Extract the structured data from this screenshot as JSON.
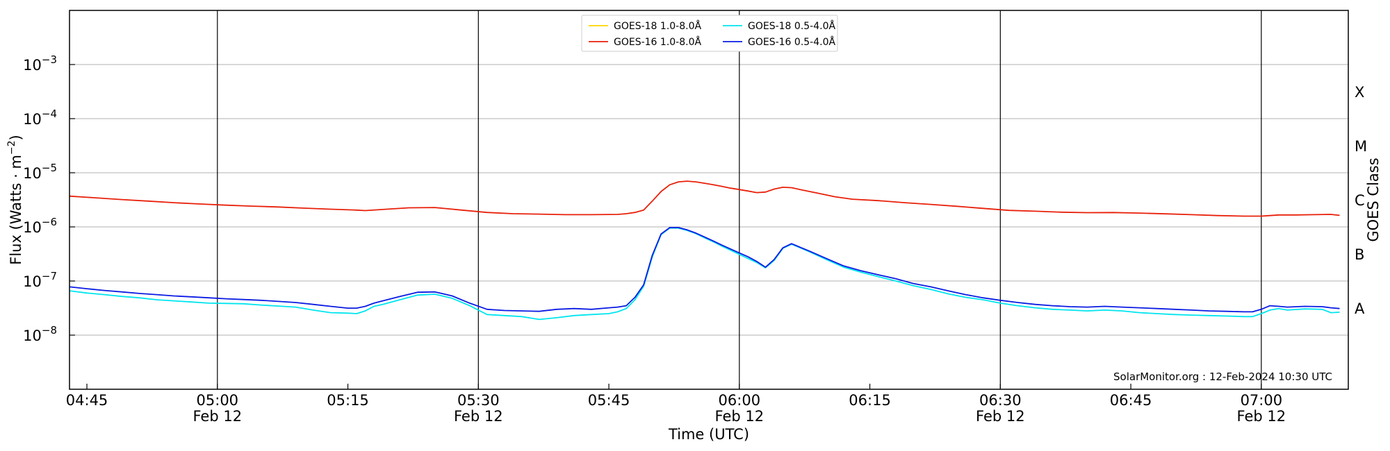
{
  "chart_data": {
    "type": "line",
    "title": "",
    "xlabel": "Time (UTC)",
    "ylabel_prefix": "Flux (Watts · m",
    "ylabel_sup": "−2",
    "ylabel_suffix": ")",
    "right_label": "GOES Class",
    "yscale": "log",
    "xlim_minutes_utc": [
      283,
      430
    ],
    "ylim": [
      1e-09,
      0.01
    ],
    "grid": "horizontal at decades",
    "legend_position": "top-center",
    "credit": "SolarMonitor.org : 12-Feb-2024 10:30 UTC",
    "x_ticks": [
      {
        "t": 285,
        "time": "04:45",
        "date": ""
      },
      {
        "t": 300,
        "time": "05:00",
        "date": "Feb 12"
      },
      {
        "t": 315,
        "time": "05:15",
        "date": ""
      },
      {
        "t": 330,
        "time": "05:30",
        "date": "Feb 12"
      },
      {
        "t": 345,
        "time": "05:45",
        "date": ""
      },
      {
        "t": 360,
        "time": "06:00",
        "date": "Feb 12"
      },
      {
        "t": 375,
        "time": "06:15",
        "date": ""
      },
      {
        "t": 390,
        "time": "06:30",
        "date": "Feb 12"
      },
      {
        "t": 405,
        "time": "06:45",
        "date": ""
      },
      {
        "t": 420,
        "time": "07:00",
        "date": "Feb 12"
      }
    ],
    "day_lines": [
      300,
      330,
      360,
      390,
      420
    ],
    "y_ticks": [
      {
        "exp": -8,
        "base": "10",
        "sup": "−8"
      },
      {
        "exp": -7,
        "base": "10",
        "sup": "−7"
      },
      {
        "exp": -6,
        "base": "10",
        "sup": "−6"
      },
      {
        "exp": -5,
        "base": "10",
        "sup": "−5"
      },
      {
        "exp": -4,
        "base": "10",
        "sup": "−4"
      },
      {
        "exp": -3,
        "base": "10",
        "sup": "−3"
      }
    ],
    "goes_classes": [
      {
        "label": "A",
        "exp": -7.5
      },
      {
        "label": "B",
        "exp": -6.5
      },
      {
        "label": "C",
        "exp": -5.5
      },
      {
        "label": "M",
        "exp": -4.5
      },
      {
        "label": "X",
        "exp": -3.5
      }
    ],
    "series": [
      {
        "name": "GOES-18 1.0-8.0Å",
        "color": "#FFD700",
        "points": []
      },
      {
        "name": "GOES-16 1.0-8.0Å",
        "color": "#E8200A",
        "points": [
          [
            283,
            3.7e-06
          ],
          [
            286,
            3.45e-06
          ],
          [
            289,
            3.2e-06
          ],
          [
            292,
            3e-06
          ],
          [
            295,
            2.8e-06
          ],
          [
            298,
            2.65e-06
          ],
          [
            301,
            2.52e-06
          ],
          [
            304,
            2.42e-06
          ],
          [
            307,
            2.33e-06
          ],
          [
            310,
            2.22e-06
          ],
          [
            313,
            2.12e-06
          ],
          [
            316,
            2.04e-06
          ],
          [
            317,
            2e-06
          ],
          [
            319,
            2.1e-06
          ],
          [
            322,
            2.25e-06
          ],
          [
            325,
            2.28e-06
          ],
          [
            328,
            2.05e-06
          ],
          [
            331,
            1.85e-06
          ],
          [
            334,
            1.75e-06
          ],
          [
            337,
            1.72e-06
          ],
          [
            340,
            1.68e-06
          ],
          [
            343,
            1.68e-06
          ],
          [
            346,
            1.7e-06
          ],
          [
            347,
            1.75e-06
          ],
          [
            348,
            1.85e-06
          ],
          [
            349,
            2.05e-06
          ],
          [
            350,
            3e-06
          ],
          [
            351,
            4.5e-06
          ],
          [
            352,
            6e-06
          ],
          [
            353,
            6.8e-06
          ],
          [
            354,
            7e-06
          ],
          [
            355,
            6.8e-06
          ],
          [
            356,
            6.4e-06
          ],
          [
            357,
            6e-06
          ],
          [
            358,
            5.6e-06
          ],
          [
            359,
            5.2e-06
          ],
          [
            360,
            4.9e-06
          ],
          [
            361,
            4.6e-06
          ],
          [
            362,
            4.3e-06
          ],
          [
            363,
            4.4e-06
          ],
          [
            364,
            5e-06
          ],
          [
            365,
            5.4e-06
          ],
          [
            366,
            5.3e-06
          ],
          [
            367,
            4.9e-06
          ],
          [
            369,
            4.2e-06
          ],
          [
            371,
            3.6e-06
          ],
          [
            373,
            3.25e-06
          ],
          [
            376,
            3.05e-06
          ],
          [
            379,
            2.8e-06
          ],
          [
            382,
            2.6e-06
          ],
          [
            385,
            2.4e-06
          ],
          [
            388,
            2.2e-06
          ],
          [
            391,
            2.02e-06
          ],
          [
            394,
            1.95e-06
          ],
          [
            397,
            1.87e-06
          ],
          [
            400,
            1.83e-06
          ],
          [
            403,
            1.84e-06
          ],
          [
            406,
            1.8e-06
          ],
          [
            409,
            1.74e-06
          ],
          [
            412,
            1.68e-06
          ],
          [
            415,
            1.62e-06
          ],
          [
            418,
            1.58e-06
          ],
          [
            420,
            1.58e-06
          ],
          [
            421,
            1.62e-06
          ],
          [
            422,
            1.66e-06
          ],
          [
            424,
            1.66e-06
          ],
          [
            426,
            1.68e-06
          ],
          [
            428,
            1.7e-06
          ],
          [
            429,
            1.63e-06
          ]
        ]
      },
      {
        "name": "GOES-18 0.5-4.0Å",
        "color": "#00E5EE",
        "points": [
          [
            283,
            6.6e-08
          ],
          [
            285,
            6e-08
          ],
          [
            287,
            5.6e-08
          ],
          [
            289,
            5.2e-08
          ],
          [
            291,
            4.9e-08
          ],
          [
            293,
            4.5e-08
          ],
          [
            295,
            4.3e-08
          ],
          [
            297,
            4.1e-08
          ],
          [
            299,
            3.9e-08
          ],
          [
            301,
            3.85e-08
          ],
          [
            303,
            3.8e-08
          ],
          [
            305,
            3.6e-08
          ],
          [
            307,
            3.45e-08
          ],
          [
            309,
            3.3e-08
          ],
          [
            311,
            2.9e-08
          ],
          [
            313,
            2.6e-08
          ],
          [
            315,
            2.55e-08
          ],
          [
            316,
            2.5e-08
          ],
          [
            317,
            2.8e-08
          ],
          [
            318,
            3.4e-08
          ],
          [
            319,
            3.7e-08
          ],
          [
            321,
            4.5e-08
          ],
          [
            323,
            5.5e-08
          ],
          [
            325,
            5.7e-08
          ],
          [
            327,
            4.8e-08
          ],
          [
            329,
            3.5e-08
          ],
          [
            331,
            2.4e-08
          ],
          [
            333,
            2.3e-08
          ],
          [
            335,
            2.2e-08
          ],
          [
            337,
            1.95e-08
          ],
          [
            339,
            2.1e-08
          ],
          [
            341,
            2.3e-08
          ],
          [
            343,
            2.4e-08
          ],
          [
            345,
            2.5e-08
          ],
          [
            346,
            2.7e-08
          ],
          [
            347,
            3.1e-08
          ],
          [
            348,
            4.5e-08
          ],
          [
            349,
            8e-08
          ],
          [
            350,
            2.8e-07
          ],
          [
            351,
            7.2e-07
          ],
          [
            352,
            9.5e-07
          ],
          [
            353,
            9.5e-07
          ],
          [
            354,
            8.6e-07
          ],
          [
            355,
            7.5e-07
          ],
          [
            356,
            6.3e-07
          ],
          [
            357,
            5.3e-07
          ],
          [
            358,
            4.4e-07
          ],
          [
            359,
            3.7e-07
          ],
          [
            360,
            3.1e-07
          ],
          [
            361,
            2.6e-07
          ],
          [
            362,
            2.2e-07
          ],
          [
            363,
            1.75e-07
          ],
          [
            364,
            2.4e-07
          ],
          [
            365,
            4e-07
          ],
          [
            366,
            4.8e-07
          ],
          [
            367,
            4.1e-07
          ],
          [
            368,
            3.5e-07
          ],
          [
            370,
            2.5e-07
          ],
          [
            372,
            1.8e-07
          ],
          [
            374,
            1.45e-07
          ],
          [
            376,
            1.2e-07
          ],
          [
            378,
            1e-07
          ],
          [
            380,
            8.2e-08
          ],
          [
            382,
            7e-08
          ],
          [
            384,
            5.8e-08
          ],
          [
            386,
            5e-08
          ],
          [
            388,
            4.5e-08
          ],
          [
            390,
            3.9e-08
          ],
          [
            392,
            3.5e-08
          ],
          [
            394,
            3.2e-08
          ],
          [
            396,
            3e-08
          ],
          [
            398,
            2.9e-08
          ],
          [
            400,
            2.8e-08
          ],
          [
            402,
            2.9e-08
          ],
          [
            404,
            2.8e-08
          ],
          [
            406,
            2.6e-08
          ],
          [
            408,
            2.5e-08
          ],
          [
            410,
            2.4e-08
          ],
          [
            412,
            2.35e-08
          ],
          [
            414,
            2.3e-08
          ],
          [
            416,
            2.25e-08
          ],
          [
            418,
            2.2e-08
          ],
          [
            419,
            2.2e-08
          ],
          [
            420,
            2.5e-08
          ],
          [
            421,
            2.9e-08
          ],
          [
            422,
            3.1e-08
          ],
          [
            423,
            2.9e-08
          ],
          [
            425,
            3.05e-08
          ],
          [
            427,
            3e-08
          ],
          [
            428,
            2.6e-08
          ],
          [
            429,
            2.65e-08
          ]
        ]
      },
      {
        "name": "GOES-16 0.5-4.0Å",
        "color": "#0A1BE3",
        "points": [
          [
            283,
            7.8e-08
          ],
          [
            285,
            7.2e-08
          ],
          [
            287,
            6.7e-08
          ],
          [
            289,
            6.3e-08
          ],
          [
            291,
            5.9e-08
          ],
          [
            293,
            5.6e-08
          ],
          [
            295,
            5.3e-08
          ],
          [
            297,
            5.1e-08
          ],
          [
            299,
            4.9e-08
          ],
          [
            301,
            4.7e-08
          ],
          [
            303,
            4.55e-08
          ],
          [
            305,
            4.4e-08
          ],
          [
            307,
            4.2e-08
          ],
          [
            309,
            4e-08
          ],
          [
            311,
            3.7e-08
          ],
          [
            313,
            3.4e-08
          ],
          [
            315,
            3.15e-08
          ],
          [
            316,
            3.15e-08
          ],
          [
            317,
            3.4e-08
          ],
          [
            318,
            3.9e-08
          ],
          [
            319,
            4.3e-08
          ],
          [
            321,
            5.2e-08
          ],
          [
            323,
            6.2e-08
          ],
          [
            325,
            6.3e-08
          ],
          [
            327,
            5.3e-08
          ],
          [
            329,
            3.9e-08
          ],
          [
            331,
            3e-08
          ],
          [
            333,
            2.85e-08
          ],
          [
            335,
            2.8e-08
          ],
          [
            337,
            2.75e-08
          ],
          [
            339,
            3e-08
          ],
          [
            341,
            3.1e-08
          ],
          [
            343,
            3e-08
          ],
          [
            345,
            3.2e-08
          ],
          [
            346,
            3.3e-08
          ],
          [
            347,
            3.5e-08
          ],
          [
            348,
            5e-08
          ],
          [
            349,
            8.5e-08
          ],
          [
            350,
            3e-07
          ],
          [
            351,
            7.4e-07
          ],
          [
            352,
            9.7e-07
          ],
          [
            353,
            9.7e-07
          ],
          [
            354,
            8.8e-07
          ],
          [
            355,
            7.7e-07
          ],
          [
            356,
            6.5e-07
          ],
          [
            357,
            5.5e-07
          ],
          [
            358,
            4.6e-07
          ],
          [
            359,
            3.9e-07
          ],
          [
            360,
            3.3e-07
          ],
          [
            361,
            2.8e-07
          ],
          [
            362,
            2.3e-07
          ],
          [
            363,
            1.8e-07
          ],
          [
            364,
            2.5e-07
          ],
          [
            365,
            4.1e-07
          ],
          [
            366,
            4.9e-07
          ],
          [
            367,
            4.2e-07
          ],
          [
            368,
            3.6e-07
          ],
          [
            370,
            2.6e-07
          ],
          [
            372,
            1.9e-07
          ],
          [
            374,
            1.55e-07
          ],
          [
            376,
            1.3e-07
          ],
          [
            378,
            1.1e-07
          ],
          [
            380,
            9e-08
          ],
          [
            382,
            7.8e-08
          ],
          [
            384,
            6.6e-08
          ],
          [
            386,
            5.6e-08
          ],
          [
            388,
            4.9e-08
          ],
          [
            390,
            4.4e-08
          ],
          [
            392,
            4e-08
          ],
          [
            394,
            3.7e-08
          ],
          [
            396,
            3.5e-08
          ],
          [
            398,
            3.35e-08
          ],
          [
            400,
            3.3e-08
          ],
          [
            402,
            3.4e-08
          ],
          [
            404,
            3.3e-08
          ],
          [
            406,
            3.2e-08
          ],
          [
            408,
            3.1e-08
          ],
          [
            410,
            3e-08
          ],
          [
            412,
            2.9e-08
          ],
          [
            414,
            2.8e-08
          ],
          [
            416,
            2.75e-08
          ],
          [
            418,
            2.7e-08
          ],
          [
            419,
            2.7e-08
          ],
          [
            420,
            3e-08
          ],
          [
            421,
            3.5e-08
          ],
          [
            422,
            3.4e-08
          ],
          [
            423,
            3.3e-08
          ],
          [
            425,
            3.4e-08
          ],
          [
            427,
            3.35e-08
          ],
          [
            428,
            3.2e-08
          ],
          [
            429,
            3.1e-08
          ]
        ]
      }
    ]
  }
}
